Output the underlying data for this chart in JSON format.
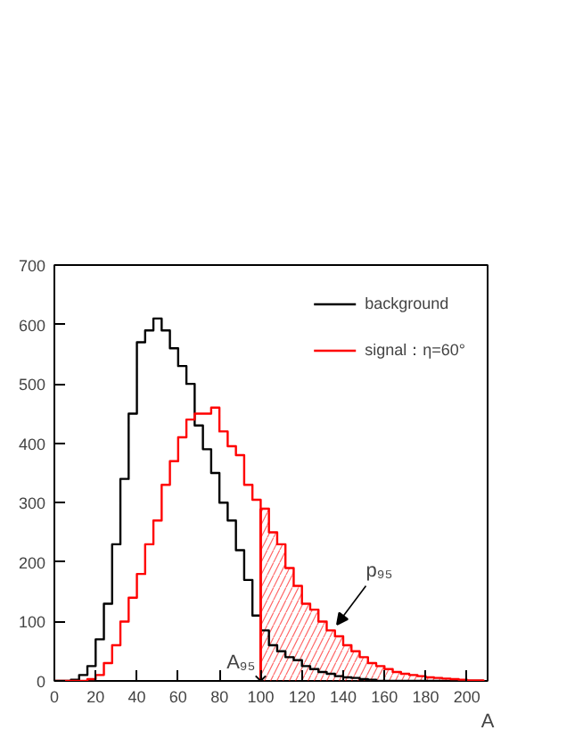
{
  "chart_data": {
    "type": "histogram",
    "xlabel": "A",
    "legend": "top right",
    "grid": false,
    "xlim": [
      0,
      210
    ],
    "ylim": [
      0,
      700
    ],
    "xticks": [
      0,
      20,
      40,
      60,
      80,
      100,
      120,
      140,
      160,
      180,
      200
    ],
    "yticks": [
      0,
      100,
      200,
      300,
      400,
      500,
      600,
      700
    ],
    "bins": [
      0,
      4,
      8,
      12,
      16,
      20,
      24,
      28,
      32,
      36,
      40,
      44,
      48,
      52,
      56,
      60,
      64,
      68,
      72,
      76,
      80,
      84,
      88,
      92,
      96,
      100,
      104,
      108,
      112,
      116,
      120,
      124,
      128,
      132,
      136,
      140,
      144,
      148,
      152,
      156,
      160,
      164,
      168,
      172,
      176,
      180,
      184,
      188,
      192,
      196,
      200,
      204,
      208
    ],
    "series": [
      {
        "name": "background",
        "color": "#000000",
        "values": [
          0,
          0,
          2,
          10,
          25,
          70,
          130,
          230,
          340,
          450,
          570,
          590,
          610,
          590,
          560,
          530,
          500,
          430,
          390,
          350,
          300,
          270,
          220,
          170,
          110,
          85,
          60,
          50,
          40,
          35,
          25,
          20,
          15,
          12,
          8,
          6,
          5,
          3,
          2,
          0,
          0,
          0,
          0,
          0,
          0,
          0,
          0,
          0,
          0,
          0,
          0,
          0
        ]
      },
      {
        "name": "signal：η=60°",
        "color": "#ff0000",
        "values": [
          0,
          0,
          0,
          0,
          3,
          10,
          30,
          60,
          100,
          140,
          180,
          230,
          270,
          330,
          370,
          410,
          440,
          450,
          450,
          460,
          420,
          395,
          380,
          330,
          305,
          290,
          250,
          230,
          190,
          160,
          130,
          120,
          100,
          85,
          75,
          60,
          50,
          40,
          30,
          25,
          20,
          15,
          12,
          10,
          8,
          6,
          5,
          4,
          3,
          2,
          1,
          1
        ]
      },
      {
        "type": "area",
        "color": "#ff0000",
        "x": [
          100,
          104,
          104,
          108,
          108,
          112,
          112,
          116,
          116,
          120,
          120,
          124,
          124,
          128,
          128,
          132,
          132,
          136,
          136,
          140,
          140,
          144,
          144,
          148,
          148,
          152,
          152,
          156,
          156,
          160,
          160,
          164,
          164,
          168,
          168,
          172,
          172,
          176,
          176,
          180,
          180,
          184,
          184,
          188,
          188,
          192,
          192,
          196,
          196,
          200,
          200,
          204,
          204,
          208
        ],
        "values": [
          290,
          290,
          250,
          250,
          230,
          230,
          190,
          190,
          160,
          160,
          130,
          130,
          120,
          120,
          100,
          100,
          85,
          85,
          75,
          75,
          60,
          60,
          50,
          50,
          40,
          40,
          30,
          30,
          25,
          25,
          20,
          20,
          15,
          15,
          12,
          12,
          10,
          10,
          8,
          8,
          6,
          6,
          5,
          5,
          4,
          4,
          3,
          3,
          2,
          2,
          1,
          1,
          1,
          1
        ]
      }
    ],
    "ref_lines": [
      {
        "axis": "x",
        "value": 100,
        "color": "#ff0000"
      }
    ],
    "annotations": [
      {
        "text": "A₉₅",
        "x": 100,
        "y": 0
      },
      {
        "text": "p₉₅",
        "x": 137,
        "y": 95
      }
    ]
  }
}
